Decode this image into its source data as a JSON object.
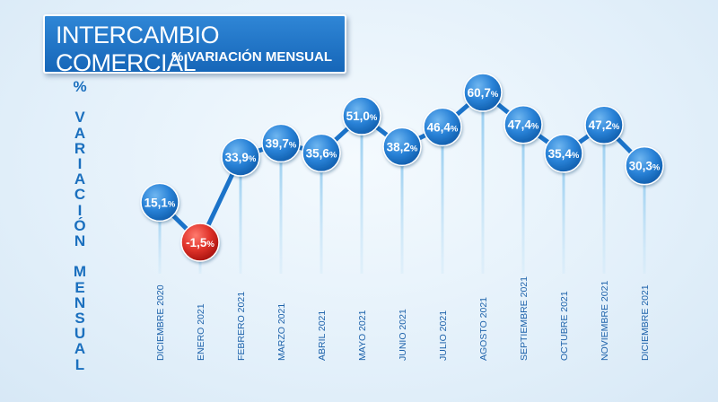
{
  "header": {
    "title": "INTERCAMBIO COMERCIAL",
    "subtitle": "% VARIACIÓN MENSUAL"
  },
  "colors": {
    "positive": "#1f78d1",
    "negative": "#d7261e",
    "line": "#1b73c9",
    "drop": "#a9d6f3"
  },
  "chart_data": {
    "type": "line",
    "ylabel": "% VARIACIÓN MENSUAL",
    "categories": [
      "DICIEMBRE 2020",
      "ENERO 2021",
      "FEBRERO 2021",
      "MARZO 2021",
      "ABRIL 2021",
      "MAYO 2021",
      "JUNIO 2021",
      "JULIO 2021",
      "AGOSTO 2021",
      "SEPTIEMBRE 2021",
      "OCTUBRE 2021",
      "NOVIEMBRE 2021",
      "DICIEMBRE 2021"
    ],
    "values": [
      15.1,
      -1.5,
      33.9,
      39.7,
      35.6,
      51.0,
      38.2,
      46.4,
      60.7,
      47.4,
      35.4,
      47.2,
      30.3
    ],
    "value_labels": [
      "15,1",
      "-1,5",
      "33,9",
      "39,7",
      "35,6",
      "51,0",
      "38,2",
      "46,4",
      "60,7",
      "47,4",
      "35,4",
      "47,2",
      "30,3"
    ],
    "value_suffix": "%",
    "ylim": [
      -1.5,
      60.7
    ],
    "grid": false,
    "legend": "none"
  }
}
